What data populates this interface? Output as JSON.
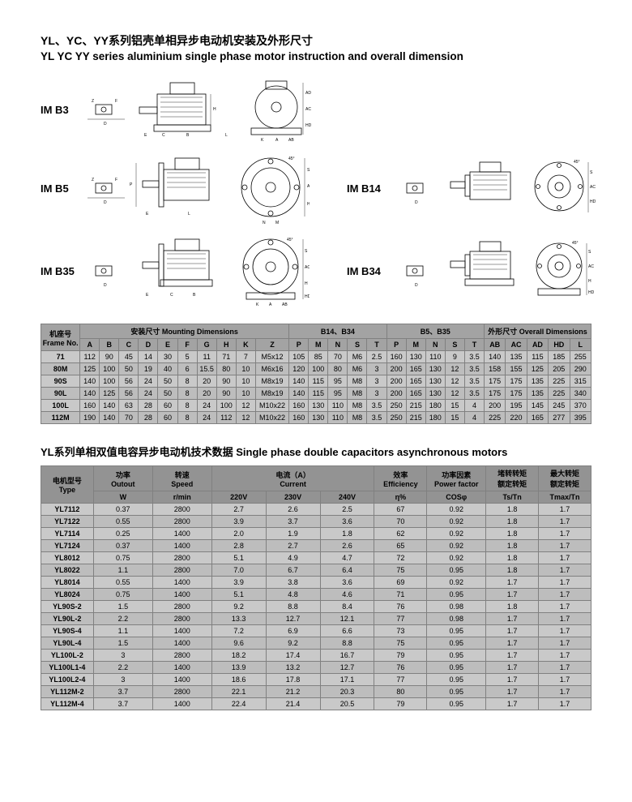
{
  "titles": {
    "cn": "YL、YC、YY系列铝壳单相异步电动机安装及外形尺寸",
    "en": "YL YC YY series aluminium single phase motor instruction and overall dimension"
  },
  "mounting_labels": [
    "IM B3",
    "IM B5",
    "IM B35",
    "IM B14",
    "IM B34"
  ],
  "dim_table": {
    "group_headers": {
      "frame_cn": "机座号",
      "frame_en": "Frame No.",
      "mount_cn": "安装尺寸 Mounting Dimensions",
      "b14": "B14、B34",
      "b5": "B5、B35",
      "overall": "外形尺寸 Overall Dimensions"
    },
    "cols": [
      "A",
      "B",
      "C",
      "D",
      "E",
      "F",
      "G",
      "H",
      "K",
      "Z",
      "P",
      "M",
      "N",
      "S",
      "T",
      "P",
      "M",
      "N",
      "S",
      "T",
      "AB",
      "AC",
      "AD",
      "HD",
      "L"
    ],
    "rows": [
      [
        "71",
        "112",
        "90",
        "45",
        "14",
        "30",
        "5",
        "11",
        "71",
        "7",
        "M5x12",
        "105",
        "85",
        "70",
        "M6",
        "2.5",
        "160",
        "130",
        "110",
        "9",
        "3.5",
        "140",
        "135",
        "115",
        "185",
        "255"
      ],
      [
        "80M",
        "125",
        "100",
        "50",
        "19",
        "40",
        "6",
        "15.5",
        "80",
        "10",
        "M6x16",
        "120",
        "100",
        "80",
        "M6",
        "3",
        "200",
        "165",
        "130",
        "12",
        "3.5",
        "158",
        "155",
        "125",
        "205",
        "290"
      ],
      [
        "90S",
        "140",
        "100",
        "56",
        "24",
        "50",
        "8",
        "20",
        "90",
        "10",
        "M8x19",
        "140",
        "115",
        "95",
        "M8",
        "3",
        "200",
        "165",
        "130",
        "12",
        "3.5",
        "175",
        "175",
        "135",
        "225",
        "315"
      ],
      [
        "90L",
        "140",
        "125",
        "56",
        "24",
        "50",
        "8",
        "20",
        "90",
        "10",
        "M8x19",
        "140",
        "115",
        "95",
        "M8",
        "3",
        "200",
        "165",
        "130",
        "12",
        "3.5",
        "175",
        "175",
        "135",
        "225",
        "340"
      ],
      [
        "100L",
        "160",
        "140",
        "63",
        "28",
        "60",
        "8",
        "24",
        "100",
        "12",
        "M10x22",
        "160",
        "130",
        "110",
        "M8",
        "3.5",
        "250",
        "215",
        "180",
        "15",
        "4",
        "200",
        "195",
        "145",
        "245",
        "370"
      ],
      [
        "112M",
        "190",
        "140",
        "70",
        "28",
        "60",
        "8",
        "24",
        "112",
        "12",
        "M10x22",
        "160",
        "130",
        "110",
        "M8",
        "3.5",
        "250",
        "215",
        "180",
        "15",
        "4",
        "225",
        "220",
        "165",
        "277",
        "395"
      ]
    ]
  },
  "spec_title": "YL系列单相双值电容异步电动机技术数据 Single phase double capacitors asynchronous motors",
  "spec_table": {
    "group_headers": {
      "type_cn": "电机型号",
      "type_en": "Type",
      "pow_cn": "功率",
      "pow_en": "Outout",
      "speed_cn": "转速",
      "speed_en": "Speed",
      "cur_cn": "电流（A）",
      "cur_en": "Current",
      "eff_cn": "效率",
      "eff_en": "Efficiency",
      "pf_cn": "功率因素",
      "pf_en": "Power factor",
      "tstn_cn": "堵转转矩",
      "tstn_cn2": "额定转矩",
      "tmax_cn": "最大转矩",
      "tmax_cn2": "额定转矩"
    },
    "sub_cols": [
      "W",
      "r/min",
      "220V",
      "230V",
      "240V",
      "η%",
      "COSφ",
      "Ts/Tn",
      "Tmax/Tn"
    ],
    "rows": [
      [
        "YL7112",
        "0.37",
        "2800",
        "2.7",
        "2.6",
        "2.5",
        "67",
        "0.92",
        "1.8",
        "1.7"
      ],
      [
        "YL7122",
        "0.55",
        "2800",
        "3.9",
        "3.7",
        "3.6",
        "70",
        "0.92",
        "1.8",
        "1.7"
      ],
      [
        "YL7114",
        "0.25",
        "1400",
        "2.0",
        "1.9",
        "1.8",
        "62",
        "0.92",
        "1.8",
        "1.7"
      ],
      [
        "YL7124",
        "0.37",
        "1400",
        "2.8",
        "2.7",
        "2.6",
        "65",
        "0.92",
        "1.8",
        "1.7"
      ],
      [
        "YL8012",
        "0.75",
        "2800",
        "5.1",
        "4.9",
        "4.7",
        "72",
        "0.92",
        "1.8",
        "1.7"
      ],
      [
        "YL8022",
        "1.1",
        "2800",
        "7.0",
        "6.7",
        "6.4",
        "75",
        "0.95",
        "1.8",
        "1.7"
      ],
      [
        "YL8014",
        "0.55",
        "1400",
        "3.9",
        "3.8",
        "3.6",
        "69",
        "0.92",
        "1.7",
        "1.7"
      ],
      [
        "YL8024",
        "0.75",
        "1400",
        "5.1",
        "4.8",
        "4.6",
        "71",
        "0.95",
        "1.7",
        "1.7"
      ],
      [
        "YL90S-2",
        "1.5",
        "2800",
        "9.2",
        "8.8",
        "8.4",
        "76",
        "0.98",
        "1.8",
        "1.7"
      ],
      [
        "YL90L-2",
        "2.2",
        "2800",
        "13.3",
        "12.7",
        "12.1",
        "77",
        "0.98",
        "1.7",
        "1.7"
      ],
      [
        "YL90S-4",
        "1.1",
        "1400",
        "7.2",
        "6.9",
        "6.6",
        "73",
        "0.95",
        "1.7",
        "1.7"
      ],
      [
        "YL90L-4",
        "1.5",
        "1400",
        "9.6",
        "9.2",
        "8.8",
        "75",
        "0.95",
        "1.7",
        "1.7"
      ],
      [
        "YL100L-2",
        "3",
        "2800",
        "18.2",
        "17.4",
        "16.7",
        "79",
        "0.95",
        "1.7",
        "1.7"
      ],
      [
        "YL100L1-4",
        "2.2",
        "1400",
        "13.9",
        "13.2",
        "12.7",
        "76",
        "0.95",
        "1.7",
        "1.7"
      ],
      [
        "YL100L2-4",
        "3",
        "1400",
        "18.6",
        "17.8",
        "17.1",
        "77",
        "0.95",
        "1.7",
        "1.7"
      ],
      [
        "YL112M-2",
        "3.7",
        "2800",
        "22.1",
        "21.2",
        "20.3",
        "80",
        "0.95",
        "1.7",
        "1.7"
      ],
      [
        "YL112M-4",
        "3.7",
        "1400",
        "22.4",
        "21.4",
        "20.5",
        "79",
        "0.95",
        "1.7",
        "1.7"
      ]
    ]
  },
  "colors": {
    "hdr": "#a3a3a3",
    "rowA": "#c9c9c9",
    "rowB": "#bdbdbd"
  }
}
